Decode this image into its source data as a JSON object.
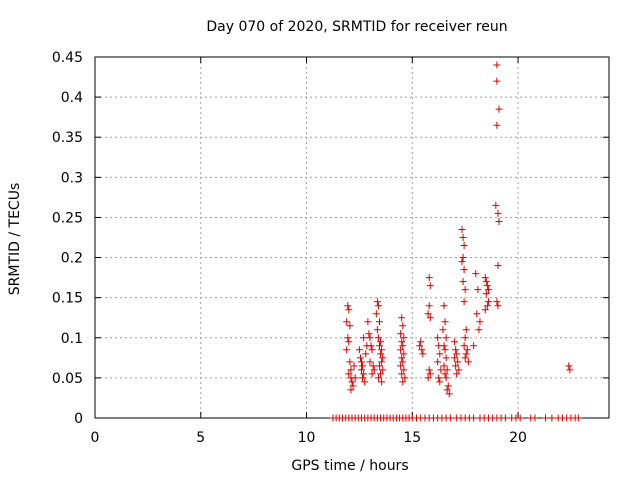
{
  "chart_data": {
    "type": "scatter",
    "title": "Day 070 of 2020, SRMTID for receiver reun",
    "xlabel": "GPS time / hours",
    "ylabel": "SRMTID / TECUs",
    "xlim": [
      0,
      24.3
    ],
    "ylim": [
      0,
      0.45
    ],
    "xticks": [
      0,
      5,
      10,
      15,
      20
    ],
    "xtick_labels": [
      "0",
      "5",
      "10",
      "15",
      "20"
    ],
    "yticks": [
      0,
      0.05,
      0.1,
      0.15,
      0.2,
      0.25,
      0.3,
      0.35,
      0.4,
      0.45
    ],
    "ytick_labels": [
      "0",
      "0.05",
      "0.1",
      "0.15",
      "0.2",
      "0.25",
      "0.3",
      "0.35",
      "0.4",
      "0.45"
    ],
    "grid": true,
    "marker": "+",
    "series": [
      {
        "name": "SRMTID",
        "color": "#dd0000",
        "points": [
          [
            11.25,
            0
          ],
          [
            11.4,
            0
          ],
          [
            11.55,
            0
          ],
          [
            11.7,
            0
          ],
          [
            11.85,
            0
          ],
          [
            12.0,
            0
          ],
          [
            12.15,
            0
          ],
          [
            12.3,
            0
          ],
          [
            12.45,
            0
          ],
          [
            12.6,
            0
          ],
          [
            12.75,
            0
          ],
          [
            12.9,
            0
          ],
          [
            13.05,
            0
          ],
          [
            13.2,
            0
          ],
          [
            13.35,
            0
          ],
          [
            13.5,
            0
          ],
          [
            13.65,
            0
          ],
          [
            13.8,
            0
          ],
          [
            13.95,
            0
          ],
          [
            14.1,
            0
          ],
          [
            14.25,
            0
          ],
          [
            14.4,
            0
          ],
          [
            14.55,
            0
          ],
          [
            14.7,
            0
          ],
          [
            14.85,
            0
          ],
          [
            15.0,
            0
          ],
          [
            15.2,
            0
          ],
          [
            15.4,
            0
          ],
          [
            15.6,
            0
          ],
          [
            15.8,
            0
          ],
          [
            16.0,
            0
          ],
          [
            16.2,
            0
          ],
          [
            16.4,
            0
          ],
          [
            16.6,
            0
          ],
          [
            16.8,
            0
          ],
          [
            17.1,
            0
          ],
          [
            17.3,
            0
          ],
          [
            17.5,
            0
          ],
          [
            17.7,
            0
          ],
          [
            17.9,
            0
          ],
          [
            18.2,
            0
          ],
          [
            18.4,
            0
          ],
          [
            18.6,
            0
          ],
          [
            18.8,
            0
          ],
          [
            19.0,
            0
          ],
          [
            19.2,
            0
          ],
          [
            19.4,
            0
          ],
          [
            19.7,
            0
          ],
          [
            19.9,
            0
          ],
          [
            20.1,
            0
          ],
          [
            20.6,
            0
          ],
          [
            20.8,
            0
          ],
          [
            21.3,
            0
          ],
          [
            21.6,
            0
          ],
          [
            21.9,
            0
          ],
          [
            22.1,
            0
          ],
          [
            22.3,
            0
          ],
          [
            22.5,
            0
          ],
          [
            22.7,
            0
          ],
          [
            22.85,
            0
          ],
          [
            11.95,
            0.14
          ],
          [
            12.0,
            0.135
          ],
          [
            11.9,
            0.12
          ],
          [
            12.05,
            0.115
          ],
          [
            11.95,
            0.1
          ],
          [
            12.0,
            0.095
          ],
          [
            11.9,
            0.085
          ],
          [
            12.05,
            0.07
          ],
          [
            12.1,
            0.06
          ],
          [
            12.0,
            0.055
          ],
          [
            12.1,
            0.05
          ],
          [
            12.15,
            0.045
          ],
          [
            12.2,
            0.04
          ],
          [
            12.1,
            0.035
          ],
          [
            12.25,
            0.065
          ],
          [
            12.3,
            0.05
          ],
          [
            12.5,
            0.085
          ],
          [
            12.55,
            0.075
          ],
          [
            12.6,
            0.07
          ],
          [
            12.65,
            0.065
          ],
          [
            12.6,
            0.06
          ],
          [
            12.7,
            0.055
          ],
          [
            12.65,
            0.05
          ],
          [
            12.75,
            0.045
          ],
          [
            12.8,
            0.08
          ],
          [
            12.85,
            0.09
          ],
          [
            12.7,
            0.1
          ],
          [
            12.9,
            0.12
          ],
          [
            12.95,
            0.105
          ],
          [
            13.0,
            0.1
          ],
          [
            13.05,
            0.09
          ],
          [
            13.1,
            0.085
          ],
          [
            13.0,
            0.07
          ],
          [
            13.15,
            0.065
          ],
          [
            13.2,
            0.06
          ],
          [
            13.1,
            0.055
          ],
          [
            13.35,
            0.145
          ],
          [
            13.4,
            0.14
          ],
          [
            13.3,
            0.13
          ],
          [
            13.45,
            0.12
          ],
          [
            13.35,
            0.11
          ],
          [
            13.4,
            0.1
          ],
          [
            13.5,
            0.095
          ],
          [
            13.45,
            0.09
          ],
          [
            13.55,
            0.085
          ],
          [
            13.5,
            0.08
          ],
          [
            13.6,
            0.075
          ],
          [
            13.55,
            0.07
          ],
          [
            13.45,
            0.065
          ],
          [
            13.6,
            0.06
          ],
          [
            13.5,
            0.055
          ],
          [
            13.4,
            0.05
          ],
          [
            13.55,
            0.045
          ],
          [
            14.5,
            0.125
          ],
          [
            14.55,
            0.115
          ],
          [
            14.45,
            0.105
          ],
          [
            14.6,
            0.1
          ],
          [
            14.5,
            0.095
          ],
          [
            14.55,
            0.09
          ],
          [
            14.45,
            0.085
          ],
          [
            14.6,
            0.08
          ],
          [
            14.5,
            0.075
          ],
          [
            14.55,
            0.07
          ],
          [
            14.45,
            0.065
          ],
          [
            14.6,
            0.06
          ],
          [
            14.5,
            0.055
          ],
          [
            14.65,
            0.05
          ],
          [
            14.55,
            0.045
          ],
          [
            15.35,
            0.09
          ],
          [
            15.4,
            0.095
          ],
          [
            15.45,
            0.085
          ],
          [
            15.5,
            0.08
          ],
          [
            15.8,
            0.175
          ],
          [
            15.85,
            0.165
          ],
          [
            15.8,
            0.14
          ],
          [
            15.75,
            0.13
          ],
          [
            15.85,
            0.125
          ],
          [
            15.8,
            0.06
          ],
          [
            15.85,
            0.055
          ],
          [
            15.75,
            0.05
          ],
          [
            16.2,
            0.1
          ],
          [
            16.25,
            0.09
          ],
          [
            16.3,
            0.08
          ],
          [
            16.2,
            0.07
          ],
          [
            16.35,
            0.06
          ],
          [
            16.25,
            0.05
          ],
          [
            16.3,
            0.045
          ],
          [
            16.5,
            0.14
          ],
          [
            16.55,
            0.12
          ],
          [
            16.45,
            0.11
          ],
          [
            16.6,
            0.1
          ],
          [
            16.5,
            0.09
          ],
          [
            16.55,
            0.085
          ],
          [
            16.6,
            0.075
          ],
          [
            16.5,
            0.065
          ],
          [
            16.65,
            0.06
          ],
          [
            16.55,
            0.055
          ],
          [
            16.6,
            0.05
          ],
          [
            16.7,
            0.04
          ],
          [
            16.65,
            0.035
          ],
          [
            16.75,
            0.03
          ],
          [
            17.0,
            0.095
          ],
          [
            17.05,
            0.085
          ],
          [
            17.1,
            0.08
          ],
          [
            17.0,
            0.075
          ],
          [
            17.15,
            0.07
          ],
          [
            17.05,
            0.065
          ],
          [
            17.2,
            0.06
          ],
          [
            17.1,
            0.055
          ],
          [
            17.35,
            0.235
          ],
          [
            17.4,
            0.225
          ],
          [
            17.45,
            0.215
          ],
          [
            17.4,
            0.2
          ],
          [
            17.35,
            0.195
          ],
          [
            17.45,
            0.185
          ],
          [
            17.4,
            0.17
          ],
          [
            17.5,
            0.16
          ],
          [
            17.45,
            0.145
          ],
          [
            17.55,
            0.11
          ],
          [
            17.5,
            0.1
          ],
          [
            17.45,
            0.09
          ],
          [
            17.6,
            0.085
          ],
          [
            17.55,
            0.08
          ],
          [
            17.5,
            0.075
          ],
          [
            17.65,
            0.07
          ],
          [
            17.9,
            0.09
          ],
          [
            18.0,
            0.18
          ],
          [
            18.1,
            0.16
          ],
          [
            18.05,
            0.13
          ],
          [
            18.2,
            0.12
          ],
          [
            18.15,
            0.11
          ],
          [
            18.45,
            0.175
          ],
          [
            18.5,
            0.17
          ],
          [
            18.55,
            0.165
          ],
          [
            18.5,
            0.155
          ],
          [
            18.6,
            0.145
          ],
          [
            18.55,
            0.14
          ],
          [
            18.45,
            0.135
          ],
          [
            18.6,
            0.16
          ],
          [
            18.95,
            0.265
          ],
          [
            19.05,
            0.255
          ],
          [
            19.1,
            0.245
          ],
          [
            19.0,
            0.365
          ],
          [
            19.1,
            0.385
          ],
          [
            19.0,
            0.42
          ],
          [
            19.0,
            0.44
          ],
          [
            19.05,
            0.19
          ],
          [
            19.0,
            0.145
          ],
          [
            19.05,
            0.14
          ],
          [
            22.4,
            0.065
          ],
          [
            22.45,
            0.06
          ]
        ]
      }
    ]
  }
}
